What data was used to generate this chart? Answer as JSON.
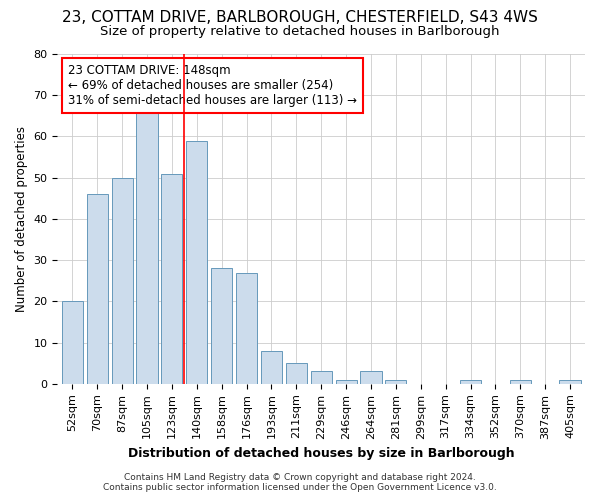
{
  "title1": "23, COTTAM DRIVE, BARLBOROUGH, CHESTERFIELD, S43 4WS",
  "title2": "Size of property relative to detached houses in Barlborough",
  "xlabel": "Distribution of detached houses by size in Barlborough",
  "ylabel": "Number of detached properties",
  "bar_color": "#ccdcec",
  "bar_edge_color": "#6699bb",
  "categories": [
    "52sqm",
    "70sqm",
    "87sqm",
    "105sqm",
    "123sqm",
    "140sqm",
    "158sqm",
    "176sqm",
    "193sqm",
    "211sqm",
    "229sqm",
    "246sqm",
    "264sqm",
    "281sqm",
    "299sqm",
    "317sqm",
    "334sqm",
    "352sqm",
    "370sqm",
    "387sqm",
    "405sqm"
  ],
  "values": [
    20,
    46,
    50,
    66,
    51,
    59,
    28,
    27,
    8,
    5,
    3,
    1,
    3,
    1,
    0,
    0,
    1,
    0,
    1,
    0,
    1
  ],
  "ylim": [
    0,
    80
  ],
  "yticks": [
    0,
    10,
    20,
    30,
    40,
    50,
    60,
    70,
    80
  ],
  "annotation_line1": "23 COTTAM DRIVE: 148sqm",
  "annotation_line2": "← 69% of detached houses are smaller (254)",
  "annotation_line3": "31% of semi-detached houses are larger (113) →",
  "target_bar_index": 5,
  "vline_x": 4.5,
  "footnote1": "Contains HM Land Registry data © Crown copyright and database right 2024.",
  "footnote2": "Contains public sector information licensed under the Open Government Licence v3.0.",
  "background_color": "#ffffff",
  "grid_color": "#cccccc",
  "title_fontsize": 11,
  "subtitle_fontsize": 9.5,
  "xlabel_fontsize": 9,
  "ylabel_fontsize": 8.5,
  "tick_fontsize": 8,
  "annotation_fontsize": 8.5,
  "footnote_fontsize": 6.5
}
